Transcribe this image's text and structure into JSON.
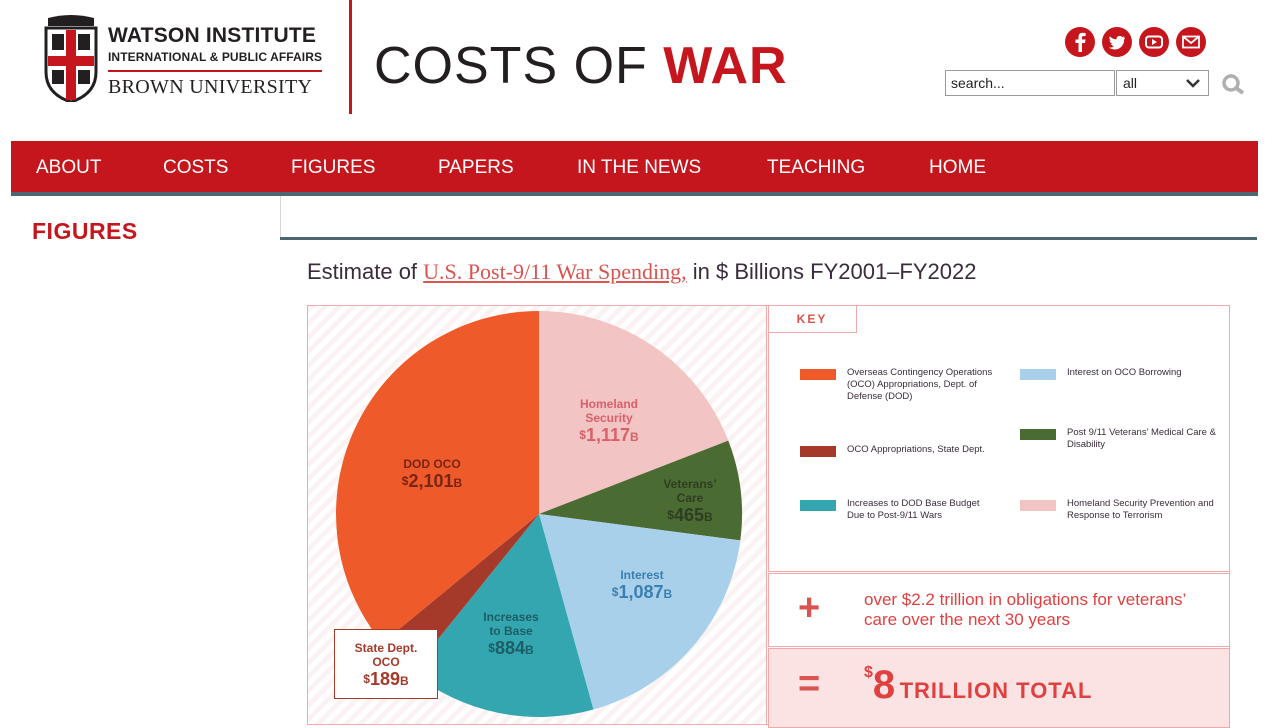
{
  "header": {
    "institute_name": "WATSON INSTITUTE",
    "institute_sub": "INTERNATIONAL & PUBLIC AFFAIRS",
    "university": "BROWN UNIVERSITY",
    "site_title_part1": "COSTS OF ",
    "site_title_part2": "WAR",
    "social": [
      "facebook-icon",
      "twitter-icon",
      "youtube-icon",
      "email-icon"
    ],
    "search": {
      "value": "search...",
      "select_value": "all"
    }
  },
  "nav": {
    "items": [
      "ABOUT",
      "COSTS",
      "FIGURES",
      "PAPERS",
      "IN THE NEWS",
      "TEACHING",
      "HOME"
    ]
  },
  "page": {
    "section_title": "FIGURES"
  },
  "figure": {
    "title_pre": "Estimate of ",
    "title_link": "U.S. Post-9/11 War Spending,",
    "title_post": " in $ Billions FY2001–FY2022",
    "key_label": "KEY",
    "plus_text": "over $2.2 trillion in obligations for veterans’ care over the next 30 years",
    "total_currency": "$",
    "total_number": "8",
    "total_word": "TRILLION TOTAL",
    "plus_symbol": "+",
    "equals_symbol": "="
  },
  "chart_data": {
    "type": "pie",
    "slices": [
      {
        "label": "Homeland Security",
        "value": 1117,
        "display": "1,117",
        "color": "#f3c4c4",
        "label_color": "#d9606a"
      },
      {
        "label": "Veterans’ Care",
        "value": 465,
        "display": "465",
        "color": "#4a6b32",
        "label_color": "#2f3d22"
      },
      {
        "label": "Interest",
        "value": 1087,
        "display": "1,087",
        "color": "#a8d0ea",
        "label_color": "#3b7fb0"
      },
      {
        "label": "Increases to Base",
        "value": 884,
        "display": "884",
        "color": "#33a6b0",
        "label_color": "#1d5d66"
      },
      {
        "label": "State Dept. OCO",
        "value": 189,
        "display": "189",
        "color": "#a63a2a",
        "label_color": "#a63a2a"
      },
      {
        "label": "DOD OCO",
        "value": 2101,
        "display": "2,101",
        "color": "#ef5a2b",
        "label_color": "#7a2414"
      }
    ],
    "legend": [
      {
        "text": "Overseas Contingency Operations (OCO) Appropriations, Dept. of Defense (DOD)",
        "color": "#ef5a2b"
      },
      {
        "text": "Interest on OCO Borrowing",
        "color": "#a8d0ea"
      },
      {
        "text": "Post 9/11 Veterans’ Medical Care & Disability",
        "color": "#4a6b32"
      },
      {
        "text": "OCO Appropriations, State Dept.",
        "color": "#a63a2a"
      },
      {
        "text": "Increases to DOD Base Budget Due to Post-9/11 Wars",
        "color": "#33a6b0"
      },
      {
        "text": "Homeland Security Prevention and Response to Terrorism",
        "color": "#f3c4c4"
      }
    ],
    "unit_suffix": "B",
    "currency": "$"
  }
}
